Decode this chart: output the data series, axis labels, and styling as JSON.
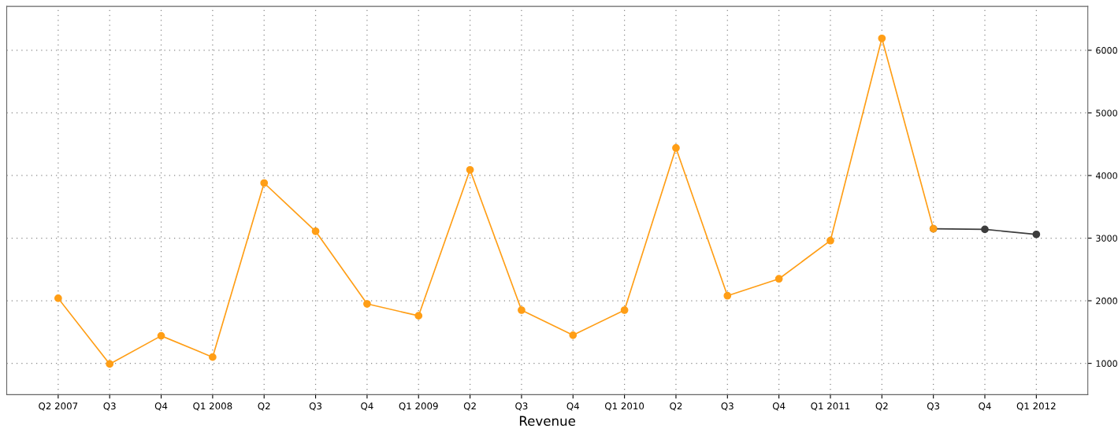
{
  "chart_data": {
    "type": "line",
    "xlabel": "Revenue",
    "categories": [
      "Q2 2007",
      "Q3",
      "Q4",
      "Q1 2008",
      "Q2",
      "Q3",
      "Q4",
      "Q1 2009",
      "Q2",
      "Q3",
      "Q4",
      "Q1 2010",
      "Q2",
      "Q3",
      "Q4",
      "Q1 2011",
      "Q2",
      "Q3",
      "Q4",
      "Q1 2012"
    ],
    "series": [
      {
        "color": "#ff9e16",
        "values": [
          2040,
          990,
          1440,
          1100,
          3880,
          3110,
          1950,
          1760,
          4090,
          1850,
          1450,
          1850,
          4440,
          2080,
          2350,
          2960,
          6190,
          3150,
          null,
          null
        ]
      },
      {
        "color": "#3c3c3c",
        "values": [
          null,
          null,
          null,
          null,
          null,
          null,
          null,
          null,
          null,
          null,
          null,
          null,
          null,
          null,
          null,
          null,
          null,
          3150,
          3140,
          3060
        ]
      }
    ],
    "ylim": [
      500,
      6700
    ],
    "yticks": [
      1000,
      2000,
      3000,
      4000,
      5000,
      6000
    ],
    "grid": true,
    "marker": "circle",
    "line_style": "solid"
  }
}
